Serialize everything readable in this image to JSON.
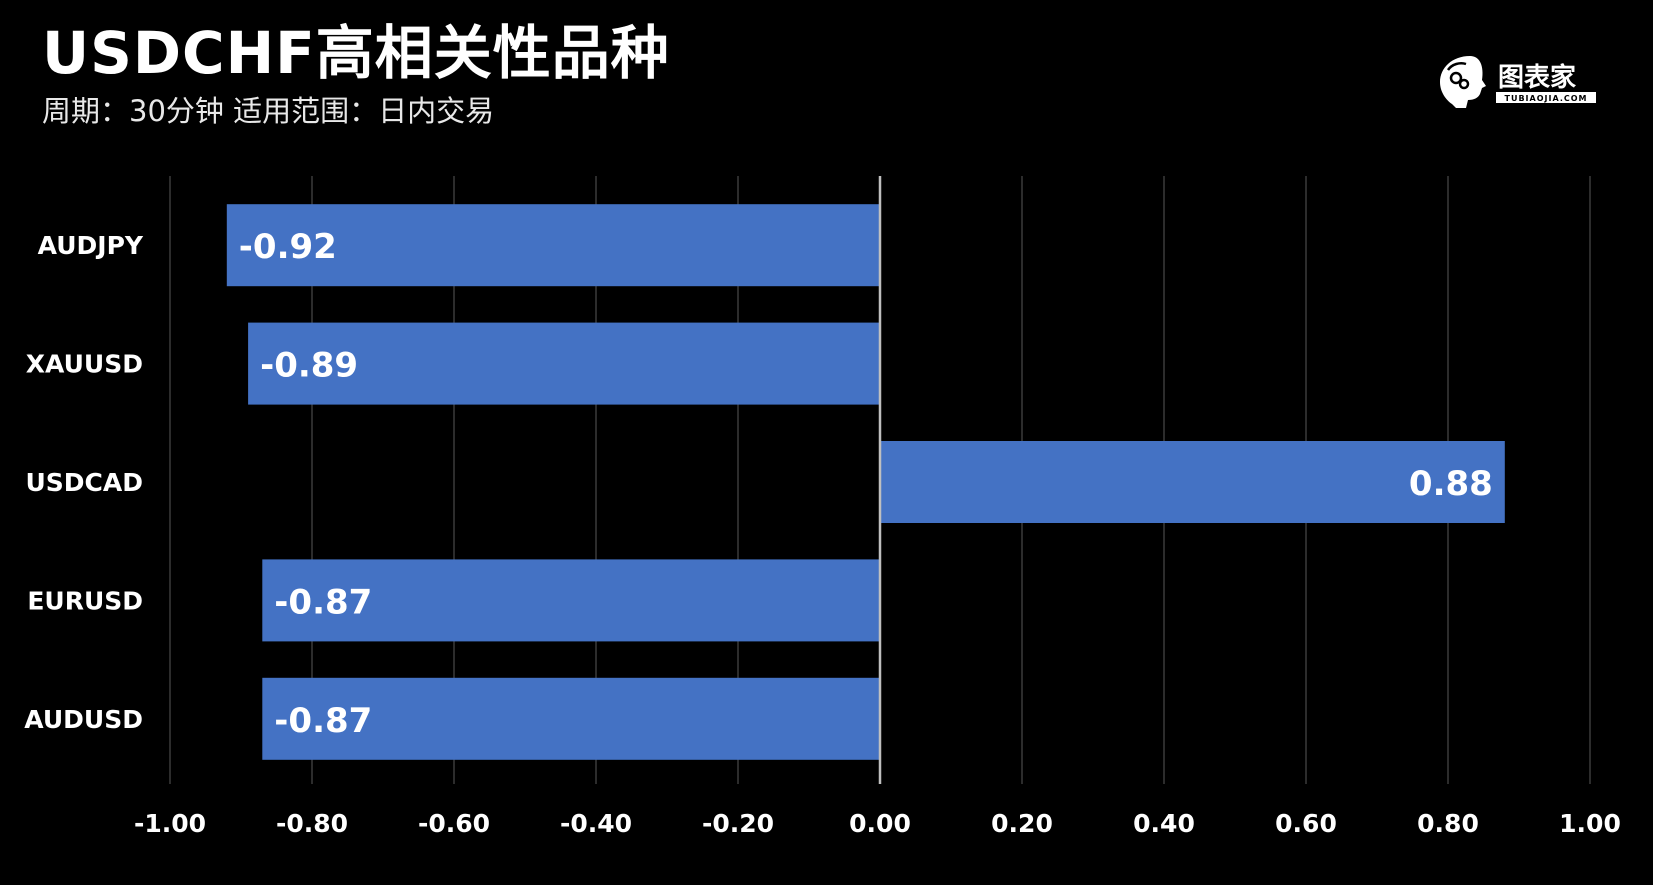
{
  "header": {
    "title": "USDCHF高相关性品种",
    "subtitle": "周期：30分钟  适用范围：日内交易"
  },
  "logo": {
    "icon": "tubiaojia-head-icon",
    "name": "图表家",
    "domain": "TUBIAOJIA.COM"
  },
  "colors": {
    "background": "#000000",
    "bar": "#4472c4",
    "grid": "#3a3a3a",
    "zero_line": "#bfbfbf",
    "text": "#ffffff"
  },
  "chart_data": {
    "type": "bar",
    "orientation": "horizontal",
    "categories": [
      "AUDJPY",
      "XAUUSD",
      "USDCAD",
      "EURUSD",
      "AUDUSD"
    ],
    "values": [
      -0.92,
      -0.89,
      0.88,
      -0.87,
      -0.87
    ],
    "value_labels": [
      "-0.92",
      "-0.89",
      "0.88",
      "-0.87",
      "-0.87"
    ],
    "xlim": [
      -1.0,
      1.0
    ],
    "xticks": [
      -1.0,
      -0.8,
      -0.6,
      -0.4,
      -0.2,
      0.0,
      0.2,
      0.4,
      0.6,
      0.8,
      1.0
    ],
    "xtick_labels": [
      "-1.00",
      "-0.80",
      "-0.60",
      "-0.40",
      "-0.20",
      "0.00",
      "0.20",
      "0.40",
      "0.60",
      "0.80",
      "1.00"
    ],
    "grid": "vertical",
    "legend": "none"
  }
}
